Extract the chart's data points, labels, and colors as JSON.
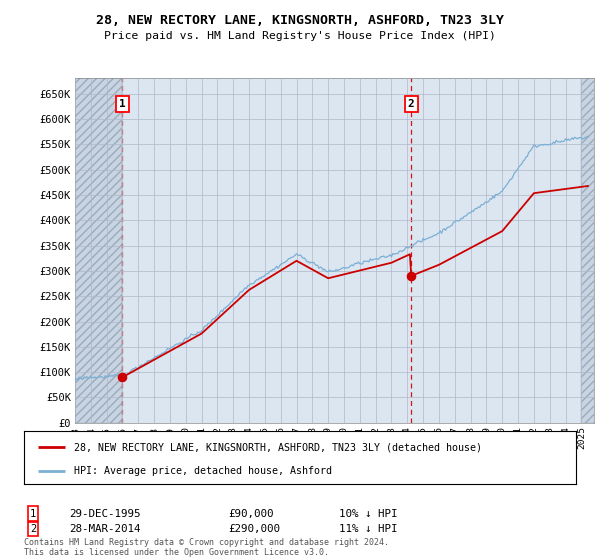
{
  "title": "28, NEW RECTORY LANE, KINGSNORTH, ASHFORD, TN23 3LY",
  "subtitle": "Price paid vs. HM Land Registry's House Price Index (HPI)",
  "ylim": [
    0,
    680000
  ],
  "yticks": [
    0,
    50000,
    100000,
    150000,
    200000,
    250000,
    300000,
    350000,
    400000,
    450000,
    500000,
    550000,
    600000,
    650000
  ],
  "ytick_labels": [
    "£0",
    "£50K",
    "£100K",
    "£150K",
    "£200K",
    "£250K",
    "£300K",
    "£350K",
    "£400K",
    "£450K",
    "£500K",
    "£550K",
    "£600K",
    "£650K"
  ],
  "xlim_start": 1993.0,
  "xlim_end": 2025.8,
  "sale1_year": 1995.99,
  "sale1_price": 90000,
  "sale2_year": 2014.24,
  "sale2_price": 290000,
  "sale1_date": "29-DEC-1995",
  "sale1_price_str": "£90,000",
  "sale1_hpi": "10% ↓ HPI",
  "sale2_date": "28-MAR-2014",
  "sale2_price_str": "£290,000",
  "sale2_hpi": "11% ↓ HPI",
  "hpi_color": "#7bafd4",
  "price_color": "#cc0000",
  "bg_color": "#dce6f1",
  "grid_color": "#b0b8c8",
  "legend_label1": "28, NEW RECTORY LANE, KINGSNORTH, ASHFORD, TN23 3LY (detached house)",
  "legend_label2": "HPI: Average price, detached house, Ashford",
  "copyright_text": "Contains HM Land Registry data © Crown copyright and database right 2024.\nThis data is licensed under the Open Government Licence v3.0."
}
